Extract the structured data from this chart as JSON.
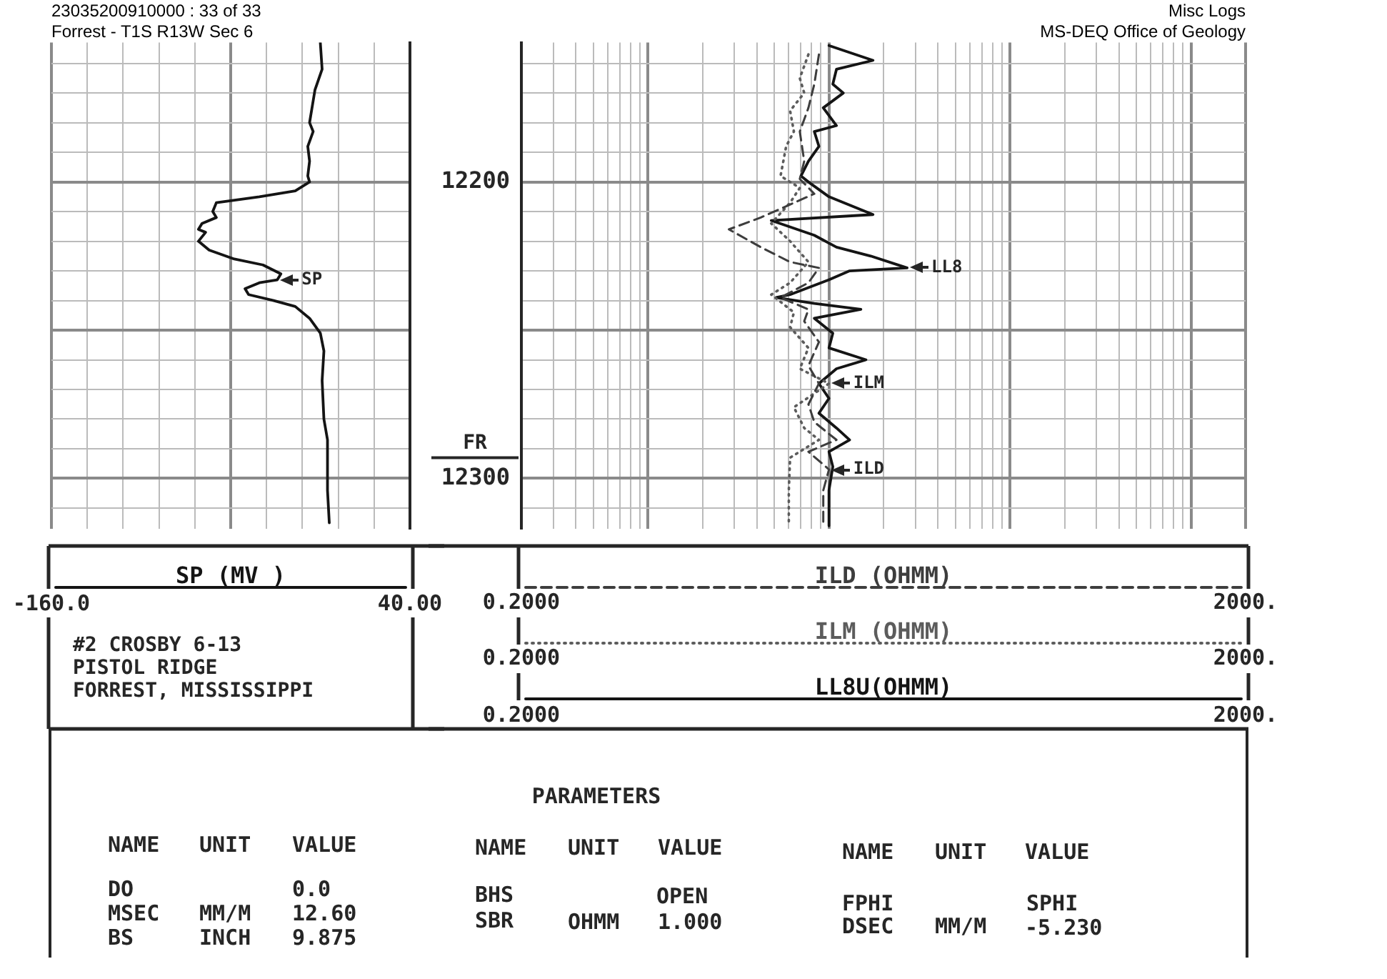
{
  "chart_data": [
    {
      "type": "line",
      "title": "23035200910000 : 33 of 33",
      "subtitle": "Forrest - T1S R13W Sec 6",
      "series": [
        {
          "name": "SP (MV )",
          "color": "#141414",
          "line_style": "solid",
          "x": [
            -10,
            -9,
            -13,
            -16,
            -14,
            -17,
            -16,
            -17,
            -16,
            -24,
            -44,
            -68,
            -70,
            -68,
            -76,
            -78,
            -74,
            -78,
            -72,
            -58,
            -42,
            -32,
            -34,
            -44,
            -52,
            -50,
            -36,
            -24,
            -16,
            -10,
            -8,
            -9,
            -8,
            -6,
            -6,
            -5
          ],
          "values": [
            12153,
            12162,
            12169,
            12180,
            12183,
            12188,
            12193,
            12198,
            12200,
            12203,
            12205,
            12207,
            12210,
            12212,
            12214,
            12216,
            12217,
            12220,
            12223,
            12226,
            12228,
            12231,
            12233,
            12234,
            12236,
            12238,
            12240,
            12242,
            12246,
            12251,
            12257,
            12267,
            12280,
            12287,
            12304,
            12315
          ]
        }
      ],
      "xlim": [
        -160,
        40
      ],
      "xticks": [
        {
          "value": -160,
          "label": "-160.0"
        },
        {
          "value": -140,
          "label": null
        },
        {
          "value": -120,
          "label": null
        },
        {
          "value": -100,
          "label": null
        },
        {
          "value": -80,
          "label": null
        },
        {
          "value": -60,
          "label": null
        },
        {
          "value": -40,
          "label": null
        },
        {
          "value": -20,
          "label": null
        },
        {
          "value": 0,
          "label": null
        },
        {
          "value": 20,
          "label": null
        },
        {
          "value": 40,
          "label": "40.00"
        }
      ],
      "ylim": [
        12317,
        12153
      ],
      "yticks": [
        {
          "value": 12160,
          "label": null
        },
        {
          "value": 12170,
          "label": null
        },
        {
          "value": 12180,
          "label": null
        },
        {
          "value": 12190,
          "label": null
        },
        {
          "value": 12200,
          "label": null
        },
        {
          "value": 12210,
          "label": null
        },
        {
          "value": 12220,
          "label": null
        },
        {
          "value": 12230,
          "label": null
        },
        {
          "value": 12240,
          "label": null
        },
        {
          "value": 12250,
          "label": null
        },
        {
          "value": 12260,
          "label": null
        },
        {
          "value": 12270,
          "label": null
        },
        {
          "value": 12280,
          "label": null
        },
        {
          "value": 12290,
          "label": null
        },
        {
          "value": 12300,
          "label": null
        },
        {
          "value": 12310,
          "label": null
        }
      ],
      "tick_labels": "x",
      "grid": true,
      "legend": "bottom",
      "annotations": [
        "#2 CROSBY 6-13",
        "PISTOL RIDGE",
        "FORREST, MISSISSIPPI",
        {
          "text": "SP",
          "x": -34,
          "y": 12233
        }
      ]
    },
    {
      "type": "line",
      "title": "Misc Logs",
      "subtitle": "MS-DEQ Office of Geology",
      "series": [
        {
          "name": "ILD (OHMM)",
          "color": "#3d3d3d",
          "line_style": "dashed",
          "x": [
            8.8,
            8.3,
            7.7,
            6.9,
            7.3,
            6.9,
            8.3,
            4.2,
            2.8,
            4.2,
            6.1,
            8.8,
            7.7,
            5.4,
            7.7,
            7.3,
            8.8,
            7.7,
            8.8,
            7.7,
            8.3,
            11,
            7.7,
            10,
            9.3,
            9.3
          ],
          "values": [
            12157,
            12167,
            12175,
            12183,
            12193,
            12199,
            12204,
            12212,
            12216,
            12222,
            12227,
            12229,
            12234,
            12239,
            12243,
            12247,
            12254,
            12262,
            12268,
            12275,
            12281,
            12287,
            12291,
            12297,
            12304,
            12316
          ]
        },
        {
          "name": "ILM (OHMM)",
          "color": "#5c5c5c",
          "line_style": "dotted",
          "x": [
            7.7,
            6.9,
            7.3,
            6.1,
            6.4,
            5.8,
            5.4,
            6.9,
            6.1,
            4.8,
            6.1,
            7.7,
            6.1,
            4.8,
            6.4,
            6.1,
            7.7,
            6.9,
            10,
            6.4,
            7.3,
            8.8,
            6.1,
            6,
            6
          ],
          "values": [
            12157,
            12165,
            12170,
            12176,
            12183,
            12188,
            12198,
            12202,
            12207,
            12214,
            12220,
            12227,
            12234,
            12238,
            12244,
            12249,
            12256,
            12263,
            12268,
            12276,
            12283,
            12287,
            12293,
            12304,
            12316
          ]
        },
        {
          "name": "LL8U(OHMM)",
          "color": "#141414",
          "line_style": "solid",
          "x": [
            10,
            17.5,
            11,
            10.5,
            12,
            9.3,
            11,
            8.3,
            8.8,
            7.7,
            7,
            7.7,
            10,
            17.5,
            4.8,
            8.3,
            11,
            17,
            27,
            13,
            10,
            6.1,
            5.1,
            8.3,
            15,
            8.3,
            10.5,
            10,
            16,
            11,
            8.8,
            10,
            8.8,
            11,
            13,
            10,
            10.5,
            10,
            10
          ],
          "values": [
            12154,
            12159,
            12162,
            12167,
            12170,
            12175,
            12181,
            12183,
            12188,
            12193,
            12198,
            12200,
            12205,
            12211,
            12213,
            12218,
            12222,
            12225,
            12229,
            12230,
            12233,
            12238,
            12239,
            12241,
            12243,
            12246,
            12251,
            12256,
            12260,
            12263,
            12268,
            12273,
            12278,
            12283,
            12287,
            12291,
            12296,
            12304,
            12316
          ]
        }
      ],
      "log": "x",
      "xlim": [
        0.2,
        2000
      ],
      "xticks": [
        {
          "value": 0.2,
          "label": "0.2000"
        },
        {
          "value": 0.3,
          "label": null
        },
        {
          "value": 0.4,
          "label": null
        },
        {
          "value": 0.5,
          "label": null
        },
        {
          "value": 0.6,
          "label": null
        },
        {
          "value": 0.7,
          "label": null
        },
        {
          "value": 0.8,
          "label": null
        },
        {
          "value": 0.9,
          "label": null
        },
        {
          "value": 1,
          "label": null
        },
        {
          "value": 2,
          "label": null
        },
        {
          "value": 3,
          "label": null
        },
        {
          "value": 4,
          "label": null
        },
        {
          "value": 5,
          "label": null
        },
        {
          "value": 6,
          "label": null
        },
        {
          "value": 7,
          "label": null
        },
        {
          "value": 8,
          "label": null
        },
        {
          "value": 9,
          "label": null
        },
        {
          "value": 10,
          "label": null
        },
        {
          "value": 20,
          "label": null
        },
        {
          "value": 30,
          "label": null
        },
        {
          "value": 40,
          "label": null
        },
        {
          "value": 50,
          "label": null
        },
        {
          "value": 60,
          "label": null
        },
        {
          "value": 70,
          "label": null
        },
        {
          "value": 80,
          "label": null
        },
        {
          "value": 90,
          "label": null
        },
        {
          "value": 100,
          "label": null
        },
        {
          "value": 200,
          "label": null
        },
        {
          "value": 300,
          "label": null
        },
        {
          "value": 400,
          "label": null
        },
        {
          "value": 500,
          "label": null
        },
        {
          "value": 600,
          "label": null
        },
        {
          "value": 700,
          "label": null
        },
        {
          "value": 800,
          "label": null
        },
        {
          "value": 900,
          "label": null
        },
        {
          "value": 1000,
          "label": null
        },
        {
          "value": 2000,
          "label": "2000."
        }
      ],
      "ylim": [
        12317,
        12153
      ],
      "yticks": [
        {
          "value": 12160,
          "label": null
        },
        {
          "value": 12170,
          "label": null
        },
        {
          "value": 12180,
          "label": null
        },
        {
          "value": 12190,
          "label": null
        },
        12200,
        {
          "value": 12210,
          "label": null
        },
        {
          "value": 12220,
          "label": null
        },
        {
          "value": 12230,
          "label": null
        },
        {
          "value": 12240,
          "label": null
        },
        {
          "value": 12250,
          "label": null
        },
        {
          "value": 12260,
          "label": null
        },
        {
          "value": 12270,
          "label": null
        },
        {
          "value": 12280,
          "label": null
        },
        {
          "value": 12290,
          "label": null
        },
        12300,
        {
          "value": 12310,
          "label": null
        }
      ],
      "grid": true,
      "legend": "bottom",
      "ref_lines": [
        {
          "axis": "y",
          "value": 12293,
          "label": "FR"
        }
      ],
      "annotations": [
        {
          "text": "LL8",
          "x": 27,
          "y": 12229
        },
        {
          "text": "ILM",
          "x": 10,
          "y": 12268
        },
        {
          "text": "ILD",
          "x": 10,
          "y": 12297
        }
      ]
    },
    {
      "type": "other",
      "title": "PARAMETERS",
      "annotations": [
        "NAME",
        "UNIT",
        "VALUE",
        "DO",
        "0.0",
        "MSEC",
        "MM/M",
        "12.60",
        "BS",
        "INCH",
        "9.875",
        "NAME",
        "UNIT",
        "VALUE",
        "BHS",
        "OPEN",
        "SBR",
        "OHMM",
        "1.000",
        "NAME",
        "UNIT",
        "VALUE",
        "FPHI",
        "SPHI",
        "DSEC",
        "MM/M",
        "-5.230"
      ]
    }
  ]
}
